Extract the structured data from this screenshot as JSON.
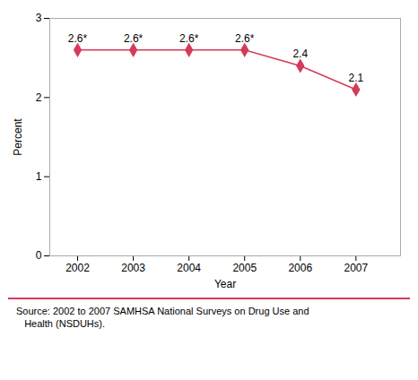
{
  "chart_data": {
    "type": "line",
    "x": [
      2002,
      2003,
      2004,
      2005,
      2006,
      2007
    ],
    "values": [
      2.6,
      2.6,
      2.6,
      2.6,
      2.4,
      2.1
    ],
    "value_labels": [
      "2.6*",
      "2.6*",
      "2.6*",
      "2.6*",
      "2.4",
      "2.1"
    ],
    "data_labels": true,
    "color": "#d63a5a",
    "marker": "diamond",
    "xlabel": "Year",
    "ylabel": "Percent",
    "xlim": [
      2001.5,
      2007.8
    ],
    "xticks": [
      2002,
      2003,
      2004,
      2005,
      2006,
      2007
    ],
    "ylim": [
      0,
      3
    ],
    "yticks": [
      0,
      1,
      2,
      3
    ],
    "grid": false,
    "annotations": [
      "Source: 2002 to 2007 SAMHSA National Surveys on Drug Use and\n   Health (NSDUHs)."
    ]
  }
}
